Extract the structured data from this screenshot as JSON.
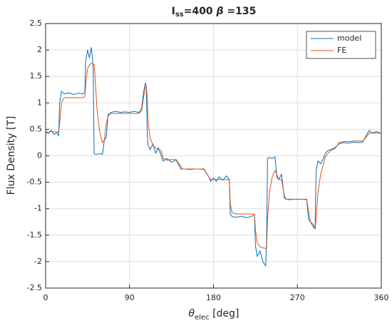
{
  "chart_data": {
    "type": "line",
    "title": [
      "I",
      "ss",
      "=400 ",
      "β",
      " =135"
    ],
    "xlabel": [
      "θ",
      "elec",
      " [deg]"
    ],
    "ylabel": "Flux Density [T]",
    "x": [
      0,
      3,
      6,
      9,
      12,
      14,
      15,
      17,
      20,
      25,
      30,
      35,
      40,
      42,
      43,
      45,
      47,
      49,
      51,
      52,
      53,
      55,
      58,
      61,
      63,
      65,
      67,
      70,
      75,
      80,
      85,
      90,
      95,
      100,
      103,
      105,
      107,
      108,
      109,
      110,
      112,
      115,
      118,
      121,
      124,
      126,
      130,
      135,
      140,
      145,
      147,
      150,
      155,
      160,
      165,
      170,
      175,
      177,
      180,
      183,
      186,
      190,
      194,
      197,
      198,
      200,
      205,
      210,
      215,
      220,
      224,
      225,
      227,
      230,
      233,
      236,
      237,
      238,
      240,
      243,
      246,
      248,
      250,
      253,
      256,
      258,
      262,
      266,
      270,
      275,
      280,
      282,
      284,
      287,
      289,
      290,
      292,
      295,
      298,
      300,
      303,
      306,
      310,
      315,
      320,
      325,
      330,
      335,
      340,
      345,
      347,
      350,
      355,
      360
    ],
    "series": [
      {
        "name": "model",
        "color": "#0072bd",
        "values": [
          0.45,
          0.42,
          0.48,
          0.4,
          0.44,
          0.38,
          1.0,
          1.22,
          1.17,
          1.19,
          1.16,
          1.18,
          1.17,
          1.2,
          1.8,
          2.0,
          1.85,
          2.05,
          1.7,
          0.04,
          0.03,
          0.03,
          0.04,
          0.03,
          0.3,
          0.35,
          0.78,
          0.82,
          0.84,
          0.82,
          0.83,
          0.82,
          0.84,
          0.82,
          0.9,
          1.2,
          1.38,
          1.3,
          0.4,
          0.2,
          0.12,
          0.22,
          0.05,
          0.15,
          0.0,
          -0.1,
          -0.05,
          -0.12,
          -0.08,
          -0.25,
          -0.25,
          -0.25,
          -0.26,
          -0.25,
          -0.25,
          -0.26,
          -0.4,
          -0.48,
          -0.42,
          -0.48,
          -0.4,
          -0.46,
          -0.38,
          -0.45,
          -1.1,
          -1.15,
          -1.16,
          -1.14,
          -1.17,
          -1.15,
          -1.12,
          -1.7,
          -1.9,
          -1.8,
          -2.0,
          -2.08,
          -1.6,
          -0.05,
          -0.03,
          -0.05,
          -0.02,
          -0.4,
          -0.45,
          -0.35,
          -0.8,
          -0.82,
          -0.83,
          -0.82,
          -0.82,
          -0.82,
          -0.83,
          -1.2,
          -1.25,
          -1.3,
          -1.38,
          -0.3,
          -0.1,
          -0.15,
          -0.05,
          0.05,
          0.1,
          0.12,
          0.15,
          0.23,
          0.25,
          0.24,
          0.26,
          0.25,
          0.26,
          0.42,
          0.48,
          0.43,
          0.46,
          0.42
        ]
      },
      {
        "name": "FE",
        "color": "#d95319",
        "values": [
          0.45,
          0.45,
          0.46,
          0.45,
          0.45,
          0.46,
          0.6,
          1.0,
          1.1,
          1.1,
          1.1,
          1.1,
          1.1,
          1.12,
          1.35,
          1.65,
          1.72,
          1.75,
          1.74,
          1.72,
          1.5,
          0.9,
          0.45,
          0.25,
          0.3,
          0.6,
          0.75,
          0.8,
          0.8,
          0.8,
          0.8,
          0.8,
          0.8,
          0.8,
          0.85,
          1.1,
          1.3,
          1.32,
          1.1,
          0.6,
          0.35,
          0.2,
          0.15,
          0.12,
          0.1,
          -0.05,
          -0.08,
          -0.07,
          -0.07,
          -0.2,
          -0.25,
          -0.25,
          -0.25,
          -0.25,
          -0.25,
          -0.25,
          -0.4,
          -0.45,
          -0.45,
          -0.45,
          -0.45,
          -0.45,
          -0.45,
          -0.45,
          -0.9,
          -1.08,
          -1.1,
          -1.1,
          -1.1,
          -1.1,
          -1.1,
          -1.4,
          -1.65,
          -1.72,
          -1.74,
          -1.75,
          -1.73,
          -1.2,
          -0.7,
          -0.4,
          -0.28,
          -0.35,
          -0.45,
          -0.45,
          -0.75,
          -0.82,
          -0.82,
          -0.82,
          -0.82,
          -0.82,
          -0.82,
          -1.05,
          -1.25,
          -1.35,
          -1.38,
          -1.2,
          -0.7,
          -0.35,
          -0.15,
          -0.02,
          0.05,
          0.1,
          0.13,
          0.25,
          0.27,
          0.27,
          0.28,
          0.28,
          0.28,
          0.38,
          0.43,
          0.43,
          0.43,
          0.43
        ]
      }
    ],
    "xlim": [
      0,
      360
    ],
    "xticks": [
      0,
      90,
      180,
      270,
      360
    ],
    "ylim": [
      -2.5,
      2.5
    ],
    "yticks": [
      -2.5,
      -2,
      -1.5,
      -1,
      -0.5,
      0,
      0.5,
      1,
      1.5,
      2,
      2.5
    ],
    "grid": true,
    "legend": "northeast"
  }
}
